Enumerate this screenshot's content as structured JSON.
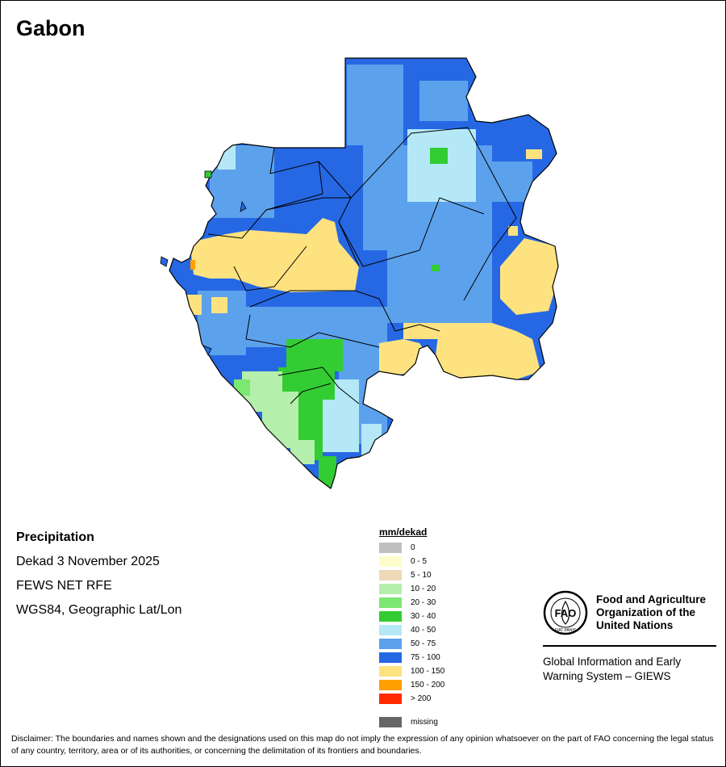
{
  "title": "Gabon",
  "info": {
    "heading": "Precipitation",
    "period": "Dekad 3 November 2025",
    "source": "FEWS NET RFE",
    "projection": "WGS84, Geographic Lat/Lon"
  },
  "legend": {
    "unit": "mm/dekad",
    "classes": [
      {
        "label": "0",
        "color": "#c0c0c0"
      },
      {
        "label": "0 - 5",
        "color": "#fffccc"
      },
      {
        "label": "5 - 10",
        "color": "#eed9b9"
      },
      {
        "label": "10 - 20",
        "color": "#b4efab"
      },
      {
        "label": "20 - 30",
        "color": "#7de774"
      },
      {
        "label": "30 - 40",
        "color": "#33cc33"
      },
      {
        "label": "40 - 50",
        "color": "#b4e8f6"
      },
      {
        "label": "50 - 75",
        "color": "#5ca1ec"
      },
      {
        "label": "75 - 100",
        "color": "#2668e4"
      },
      {
        "label": "100 - 150",
        "color": "#fde27f"
      },
      {
        "label": "150 - 200",
        "color": "#ff9f00"
      },
      {
        "label": "> 200",
        "color": "#ff2a00"
      }
    ],
    "missing": {
      "label": "missing",
      "color": "#666666"
    }
  },
  "fao": {
    "logo_text": "FAO",
    "logo_motto": "FIAT PANIS",
    "name_lines": [
      "Food and Agriculture",
      "Organization of the",
      "United Nations"
    ],
    "giews_lines": [
      "Global Information and Early",
      "Warning System – GIEWS"
    ]
  },
  "disclaimer": "Disclaimer: The boundaries and names shown and the designations used on this map do not imply the expression of any opinion whatsoever on the part of FAO concerning the legal status of any country, territory, area or of its authorities, or concerning the delimitation of its frontiers and boundaries."
}
